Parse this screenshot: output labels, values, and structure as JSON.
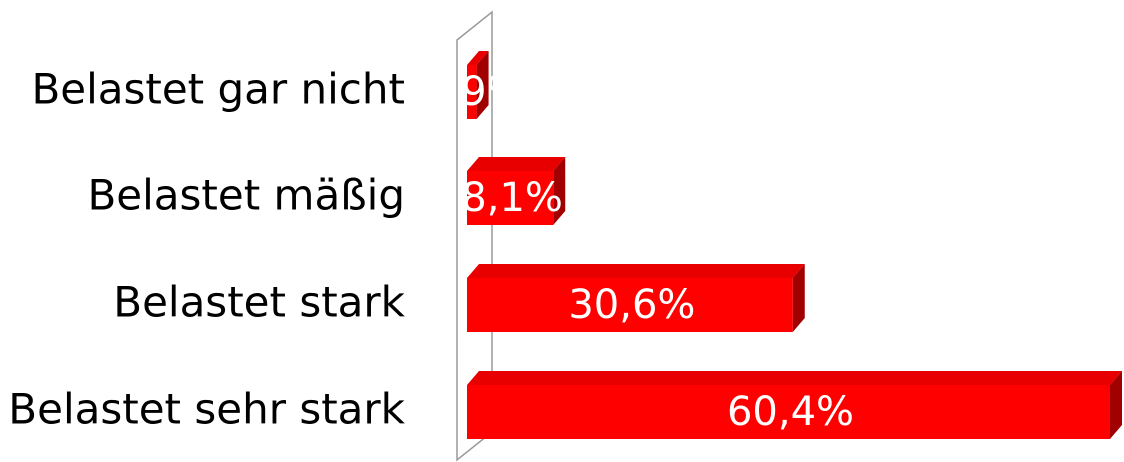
{
  "chart_data": {
    "type": "bar",
    "orientation": "horizontal",
    "categories": [
      "Belastet gar nicht",
      "Belastet mäßig",
      "Belastet stark",
      "Belastet sehr stark"
    ],
    "values": [
      0.9,
      8.1,
      30.6,
      60.4
    ],
    "value_labels": [
      "0,9%",
      "8,1%",
      "30,6%",
      "60,4%"
    ],
    "color": "#ff0000"
  }
}
